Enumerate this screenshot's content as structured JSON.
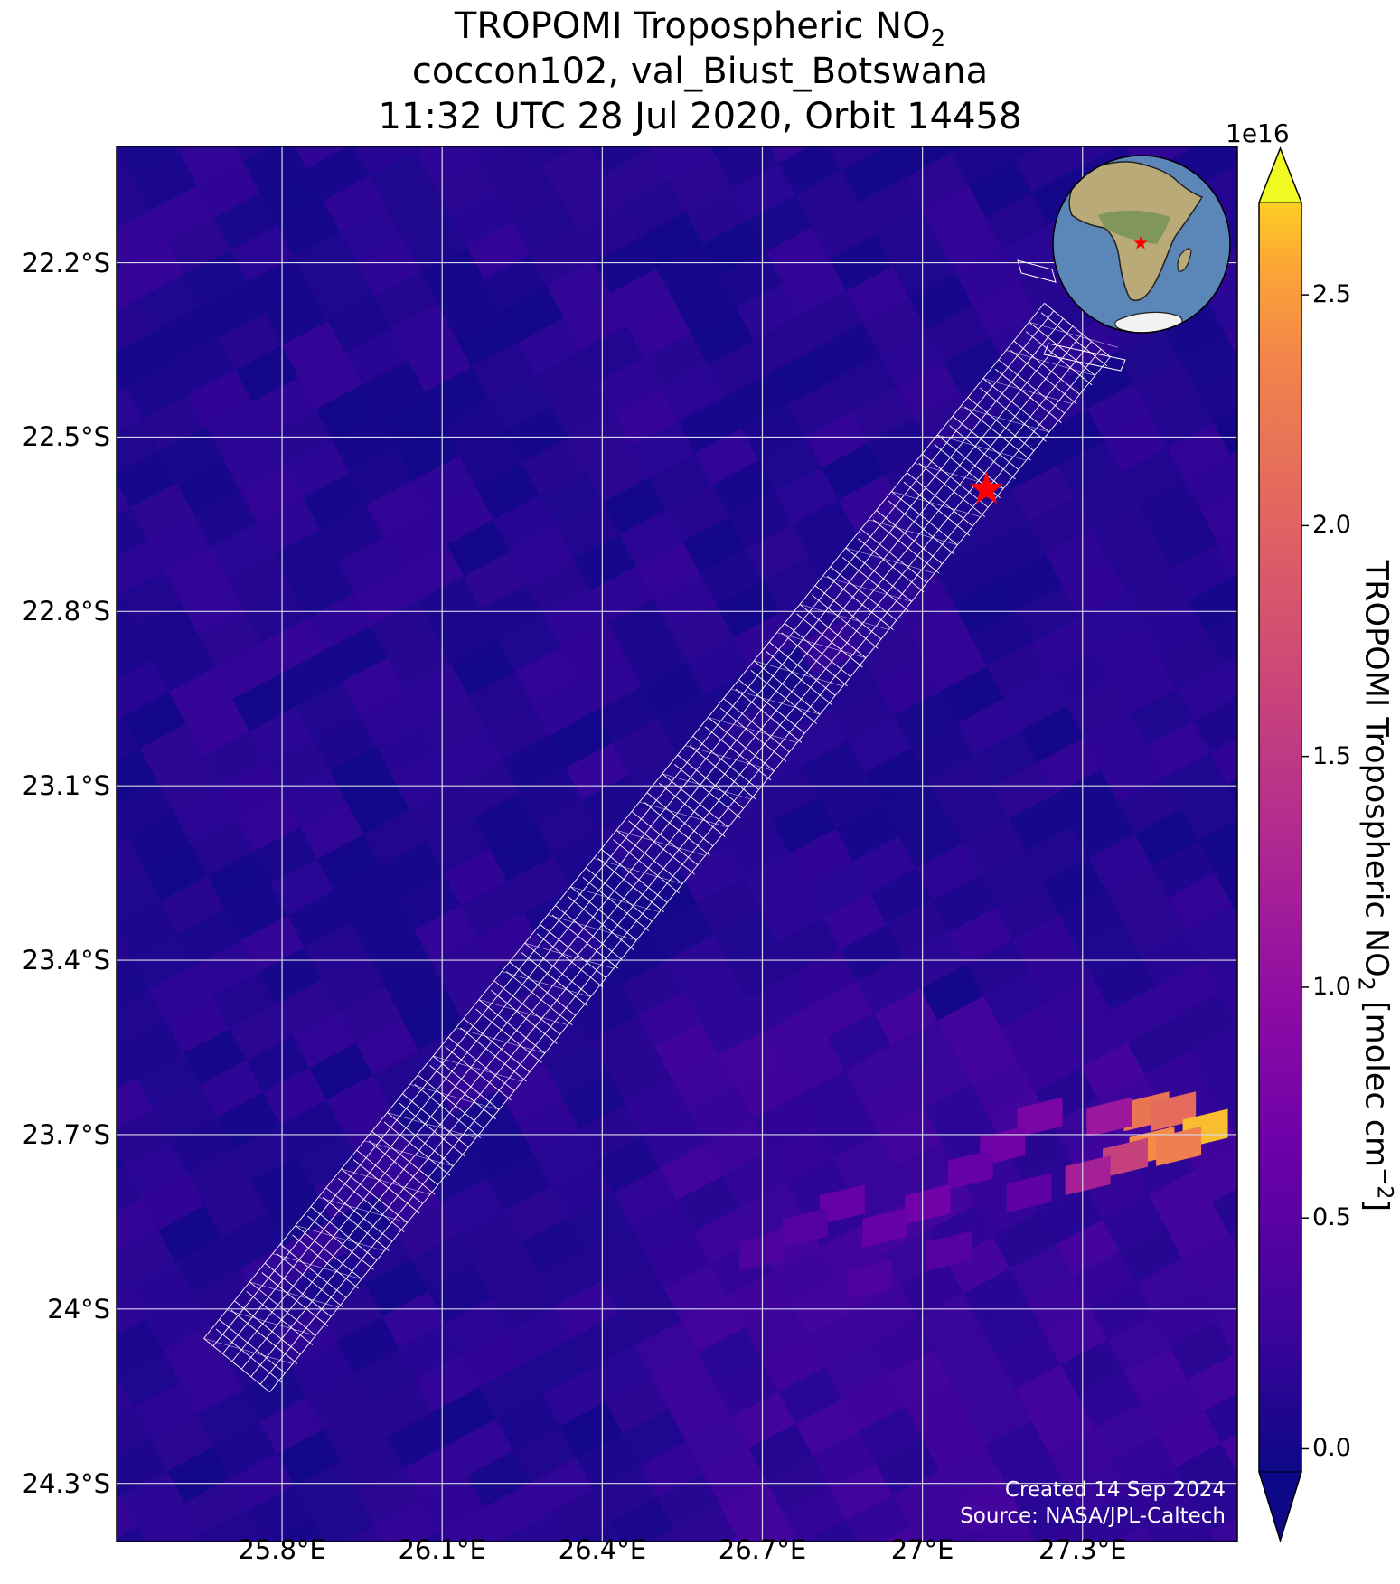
{
  "title": {
    "line1_prefix": "TROPOMI Tropospheric NO",
    "line1_sub": "2",
    "line2": "coccon102, val_Biust_Botswana",
    "line3": "11:32 UTC 28 Jul 2020, Orbit 14458"
  },
  "axes": {
    "y_ticks": [
      {
        "label": "22.2°S",
        "lat": -22.2
      },
      {
        "label": "22.5°S",
        "lat": -22.5
      },
      {
        "label": "22.8°S",
        "lat": -22.8
      },
      {
        "label": "23.1°S",
        "lat": -23.1
      },
      {
        "label": "23.4°S",
        "lat": -23.4
      },
      {
        "label": "23.7°S",
        "lat": -23.7
      },
      {
        "label": "24°S",
        "lat": -24.0
      },
      {
        "label": "24.3°S",
        "lat": -24.3
      }
    ],
    "x_ticks": [
      {
        "label": "25.8°E",
        "lon": 25.8
      },
      {
        "label": "26.1°E",
        "lon": 26.1
      },
      {
        "label": "26.4°E",
        "lon": 26.4
      },
      {
        "label": "26.7°E",
        "lon": 26.7
      },
      {
        "label": "27°E",
        "lon": 27.0
      },
      {
        "label": "27.3°E",
        "lon": 27.3
      }
    ],
    "lon_range": [
      25.49,
      27.59
    ],
    "lat_range": [
      -24.4,
      -22.0
    ]
  },
  "site": {
    "lon": 27.12,
    "lat": -22.59,
    "marker": "red-star",
    "color": "#ff0000"
  },
  "colorbar": {
    "label_prefix": "TROPOMI Tropospheric NO",
    "label_sub": "2",
    "label_mid": " [molec cm",
    "label_sup": "−2",
    "label_suffix": "]",
    "exponent": "1e16",
    "ticks": [
      {
        "label": "0.0",
        "value": 0.0
      },
      {
        "label": "0.5",
        "value": 0.5
      },
      {
        "label": "1.0",
        "value": 1.0
      },
      {
        "label": "1.5",
        "value": 1.5
      },
      {
        "label": "2.0",
        "value": 2.0
      },
      {
        "label": "2.5",
        "value": 2.5
      }
    ],
    "vmin": -0.05,
    "vmax": 2.7,
    "colormap": "plasma",
    "extend": "both"
  },
  "credit": {
    "line1": "Created 14 Sep 2024",
    "line2": "Source: NASA/JPL-Caltech"
  },
  "inset": {
    "type": "globe",
    "center_lon": 20,
    "center_lat": -10,
    "marker": "red-star"
  },
  "map_data": {
    "background_value": 0.1,
    "overlay": "footprint-grid",
    "hotspot_cells": [
      {
        "lon": 27.42,
        "lat": -23.66,
        "value": 2.2
      },
      {
        "lon": 27.47,
        "lat": -23.66,
        "value": 2.1
      },
      {
        "lon": 27.53,
        "lat": -23.69,
        "value": 2.6
      },
      {
        "lon": 27.43,
        "lat": -23.72,
        "value": 2.4
      },
      {
        "lon": 27.38,
        "lat": -23.74,
        "value": 1.6
      },
      {
        "lon": 27.48,
        "lat": -23.72,
        "value": 2.3
      },
      {
        "lon": 27.35,
        "lat": -23.67,
        "value": 1.1
      },
      {
        "lon": 27.31,
        "lat": -23.77,
        "value": 1.2
      },
      {
        "lon": 27.22,
        "lat": -23.67,
        "value": 0.8
      },
      {
        "lon": 27.15,
        "lat": -23.72,
        "value": 0.7
      },
      {
        "lon": 27.09,
        "lat": -23.76,
        "value": 0.6
      },
      {
        "lon": 27.01,
        "lat": -23.82,
        "value": 0.7
      },
      {
        "lon": 26.93,
        "lat": -23.86,
        "value": 0.6
      },
      {
        "lon": 26.85,
        "lat": -23.82,
        "value": 0.6
      },
      {
        "lon": 26.78,
        "lat": -23.86,
        "value": 0.45
      },
      {
        "lon": 26.7,
        "lat": -23.9,
        "value": 0.4
      },
      {
        "lon": 27.2,
        "lat": -23.8,
        "value": 0.55
      },
      {
        "lon": 27.05,
        "lat": -23.9,
        "value": 0.45
      },
      {
        "lon": 26.9,
        "lat": -23.95,
        "value": 0.4
      }
    ]
  }
}
